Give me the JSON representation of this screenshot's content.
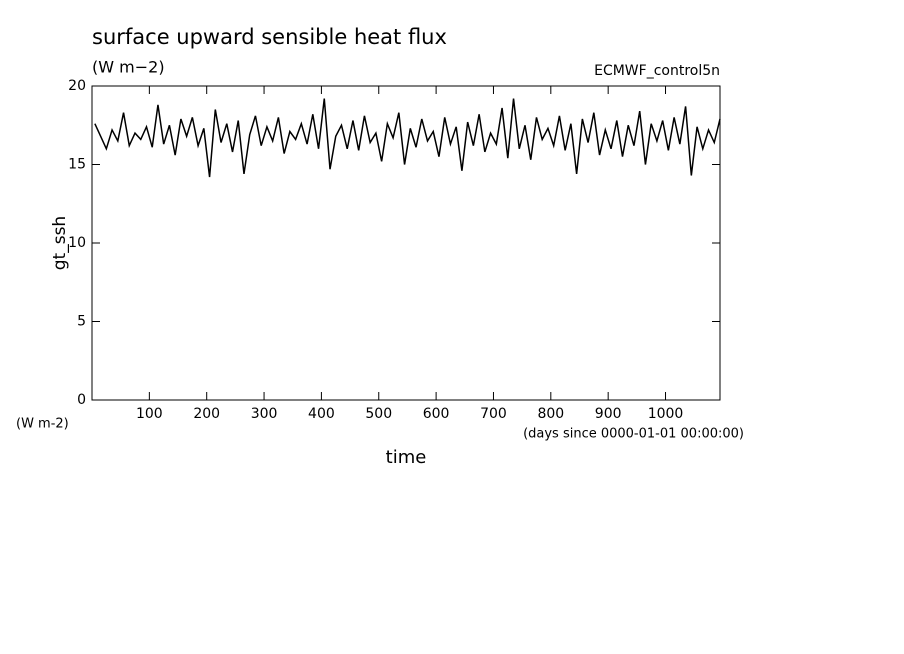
{
  "chart_data": {
    "type": "line",
    "title": "surface upward sensible heat flux",
    "subtitle": "(W m−2)",
    "dataset": "ECMWF_control5n",
    "ylabel": "gt_ssh",
    "yunits": "(W m-2)",
    "xunits": "(days since 0000-01-01 00:00:00)",
    "xlabel": "time",
    "xlim": [
      0,
      1095
    ],
    "ylim": [
      0,
      20
    ],
    "xticks": [
      100,
      200,
      300,
      400,
      500,
      600,
      700,
      800,
      900,
      1000
    ],
    "yticks": [
      0,
      5,
      10,
      15,
      20
    ],
    "color": "#000000",
    "x": [
      5,
      15,
      25,
      35,
      45,
      55,
      65,
      75,
      85,
      95,
      105,
      115,
      125,
      135,
      145,
      155,
      165,
      175,
      185,
      195,
      205,
      215,
      225,
      235,
      245,
      255,
      265,
      275,
      285,
      295,
      305,
      315,
      325,
      335,
      345,
      355,
      365,
      375,
      385,
      395,
      405,
      415,
      425,
      435,
      445,
      455,
      465,
      475,
      485,
      495,
      505,
      515,
      525,
      535,
      545,
      555,
      565,
      575,
      585,
      595,
      605,
      615,
      625,
      635,
      645,
      655,
      665,
      675,
      685,
      695,
      705,
      715,
      725,
      735,
      745,
      755,
      765,
      775,
      785,
      795,
      805,
      815,
      825,
      835,
      845,
      855,
      865,
      875,
      885,
      895,
      905,
      915,
      925,
      935,
      945,
      955,
      965,
      975,
      985,
      995,
      1005,
      1015,
      1025,
      1035,
      1045,
      1055,
      1065,
      1075,
      1085,
      1095
    ],
    "values": [
      17.6,
      16.8,
      16.0,
      17.2,
      16.5,
      18.3,
      16.2,
      17.0,
      16.6,
      17.4,
      16.1,
      18.8,
      16.3,
      17.5,
      15.6,
      17.9,
      16.8,
      18.0,
      16.2,
      17.3,
      14.2,
      18.5,
      16.4,
      17.6,
      15.8,
      17.8,
      14.4,
      16.9,
      18.1,
      16.2,
      17.4,
      16.5,
      18.0,
      15.7,
      17.1,
      16.6,
      17.6,
      16.3,
      18.2,
      16.0,
      19.2,
      14.7,
      16.8,
      17.5,
      16.0,
      17.8,
      15.9,
      18.1,
      16.4,
      17.0,
      15.2,
      17.6,
      16.7,
      18.3,
      15.0,
      17.3,
      16.1,
      17.9,
      16.5,
      17.1,
      15.5,
      18.0,
      16.3,
      17.4,
      14.6,
      17.7,
      16.2,
      18.2,
      15.8,
      17.0,
      16.3,
      18.6,
      15.4,
      19.2,
      16.0,
      17.5,
      15.3,
      18.0,
      16.6,
      17.3,
      16.2,
      18.1,
      15.9,
      17.6,
      14.4,
      17.9,
      16.4,
      18.3,
      15.6,
      17.2,
      16.0,
      17.8,
      15.5,
      17.5,
      16.2,
      18.4,
      15.0,
      17.6,
      16.5,
      17.8,
      15.9,
      18.0,
      16.3,
      18.7,
      14.3,
      17.4,
      16.0,
      17.2,
      16.4,
      17.9
    ]
  }
}
